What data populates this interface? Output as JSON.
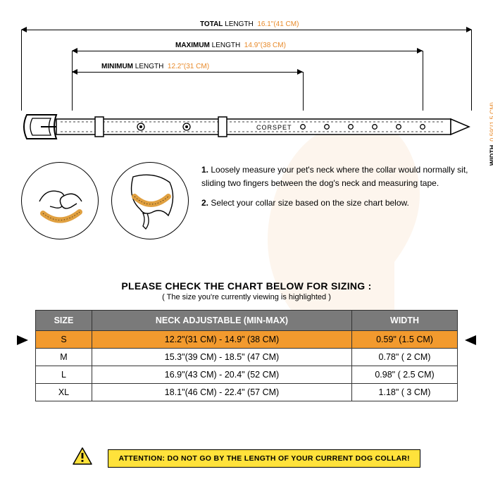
{
  "dimensions": {
    "total": {
      "label": "TOTAL",
      "sub": "LENGTH",
      "value": "16.1\"(41 CM)"
    },
    "maximum": {
      "label": "MAXIMUM",
      "sub": "LENGTH",
      "value": "14.9\"(38 CM)"
    },
    "minimum": {
      "label": "MINIMUM",
      "sub": "LENGTH",
      "value": "12.2\"(31 CM)"
    },
    "width": {
      "label": "WIDTH",
      "value": "0.59\"(1.5 CM)"
    }
  },
  "brand": "CORSPET",
  "instructions": {
    "step1_num": "1.",
    "step1": "Loosely measure your pet's neck where the collar would normally sit, sliding two fingers between the dog's neck and measuring tape.",
    "step2_num": "2.",
    "step2": "Select your collar size based on the size chart below."
  },
  "sizing": {
    "heading": "PLEASE CHECK THE CHART BELOW FOR SIZING :",
    "sub": "( The size you're currently viewing is highlighted )",
    "columns": {
      "size": "SIZE",
      "neck": "NECK ADJUSTABLE (MIN-MAX)",
      "width": "WIDTH"
    },
    "rows": [
      {
        "size": "S",
        "neck": "12.2\"(31 CM) - 14.9\" (38 CM)",
        "width": "0.59\" (1.5 CM)",
        "highlight": true
      },
      {
        "size": "M",
        "neck": "15.3\"(39 CM) - 18.5\" (47 CM)",
        "width": "0.78\" ( 2 CM)",
        "highlight": false
      },
      {
        "size": "L",
        "neck": "16.9\"(43 CM) - 20.4\" (52 CM)",
        "width": "0.98\" ( 2.5 CM)",
        "highlight": false
      },
      {
        "size": "XL",
        "neck": "18.1\"(46 CM) - 22.4\" (57 CM)",
        "width": "1.18\" ( 3 CM)",
        "highlight": false
      }
    ]
  },
  "attention": "ATTENTION: DO NOT GO BY THE LENGTH OF YOUR CURRENT DOG COLLAR!",
  "colors": {
    "accent": "#e88a2a",
    "highlight": "#f29a2e",
    "header_bg": "#7a7a7a",
    "warn_bg": "#ffe23b"
  }
}
